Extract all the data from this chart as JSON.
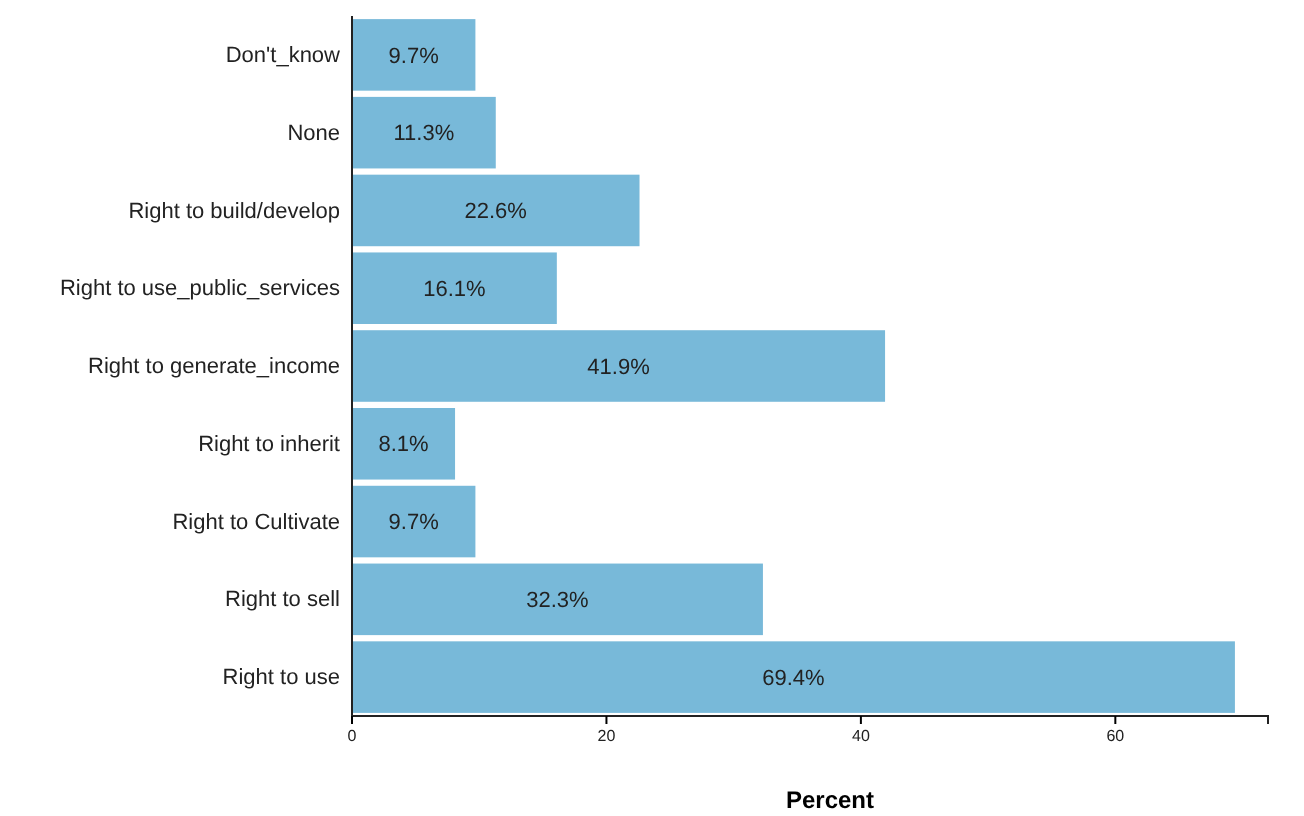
{
  "chart_data": {
    "type": "bar",
    "orientation": "horizontal",
    "xlabel": "Percent",
    "categories": [
      "Don't_know",
      "None",
      "Right to build/develop",
      "Right to use_public_services",
      "Right to generate_income",
      "Right to inherit",
      "Right to Cultivate",
      "Right to sell",
      "Right to use"
    ],
    "values": [
      9.7,
      11.3,
      22.6,
      16.1,
      41.9,
      8.1,
      9.7,
      32.3,
      69.4
    ],
    "color": "#78b9d9",
    "xlim": [
      0,
      72
    ],
    "xticks": [
      0,
      20,
      40,
      60
    ],
    "value_labels": [
      "9.7%",
      "11.3%",
      "22.6%",
      "16.1%",
      "41.9%",
      "8.1%",
      "9.7%",
      "32.3%",
      "69.4%"
    ],
    "grid": false
  }
}
